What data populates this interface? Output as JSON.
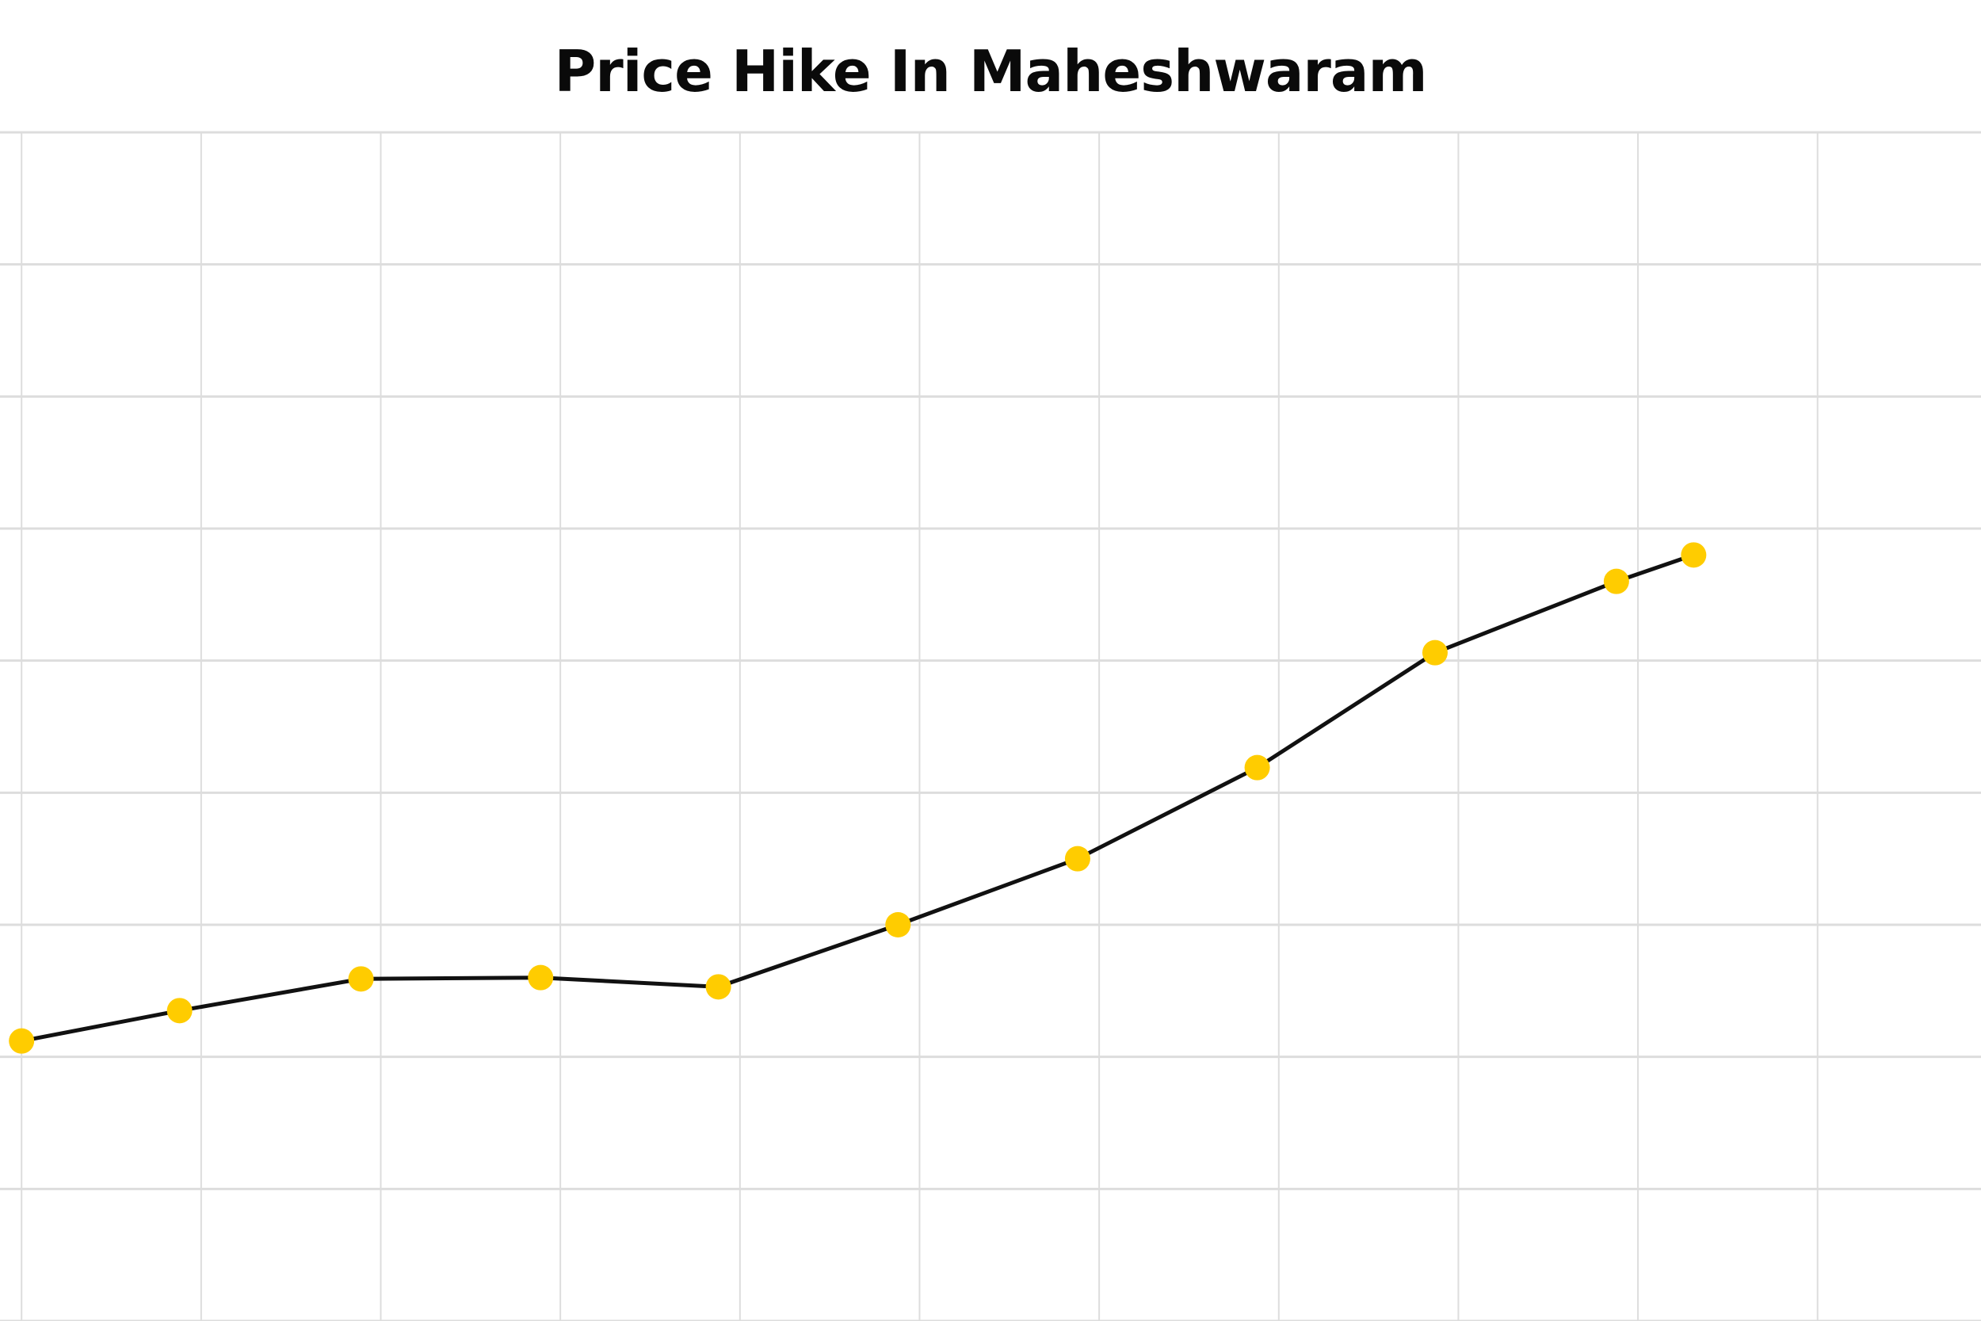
{
  "chart_data": {
    "type": "line",
    "title": "Price Hike In Maheshwaram",
    "xlabel": "",
    "ylabel": "",
    "xlim": [
      -0.12,
      10.91
    ],
    "ylim": [
      0,
      9
    ],
    "grid": true,
    "x": [
      0,
      0.88,
      1.89,
      2.89,
      3.88,
      4.88,
      5.88,
      6.88,
      7.87,
      8.88,
      9.31
    ],
    "values": [
      2.12,
      2.35,
      2.59,
      2.6,
      2.53,
      3.0,
      3.5,
      4.19,
      5.06,
      5.6,
      5.8
    ],
    "marker_color": "#FFCC00",
    "line_color": "#111111",
    "grid_color": "#dddddd"
  }
}
